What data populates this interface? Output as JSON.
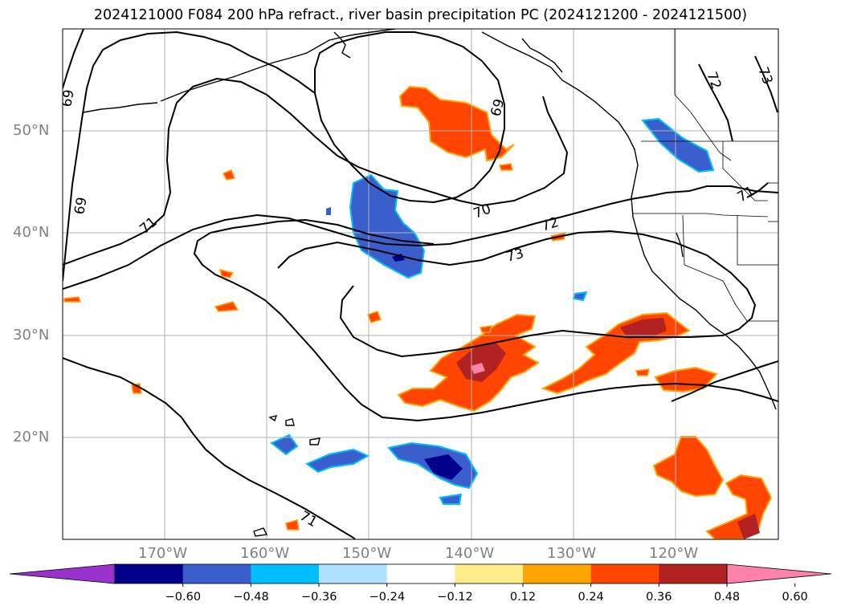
{
  "title": "2024121000 F084 200 hPa refract., river basin precipitation PC (2024121200 - 2024121500)",
  "map": {
    "lat_labels": [
      "50°N",
      "40°N",
      "30°N",
      "20°N"
    ],
    "lon_labels": [
      "170°W",
      "160°W",
      "150°W",
      "140°W",
      "130°W",
      "120°W"
    ],
    "contour_labels": [
      "69",
      "69",
      "69",
      "70",
      "71",
      "71",
      "71",
      "72",
      "72",
      "73",
      "73"
    ],
    "colors": {
      "coast": "#000000",
      "contour": "#000000",
      "grid": "#b0b0b0",
      "tick_label": "#808080"
    }
  },
  "colorbar": {
    "ticks": [
      "−0.60",
      "−0.48",
      "−0.36",
      "−0.24",
      "−0.12",
      "0.12",
      "0.24",
      "0.36",
      "0.48",
      "0.60"
    ],
    "colors": [
      "#9932cc",
      "#00008b",
      "#3a5fcd",
      "#00bfff",
      "#b0e2ff",
      "#ffffff",
      "#ffec8b",
      "#ffa500",
      "#ff4500",
      "#b22222",
      "#ff82ab"
    ]
  }
}
